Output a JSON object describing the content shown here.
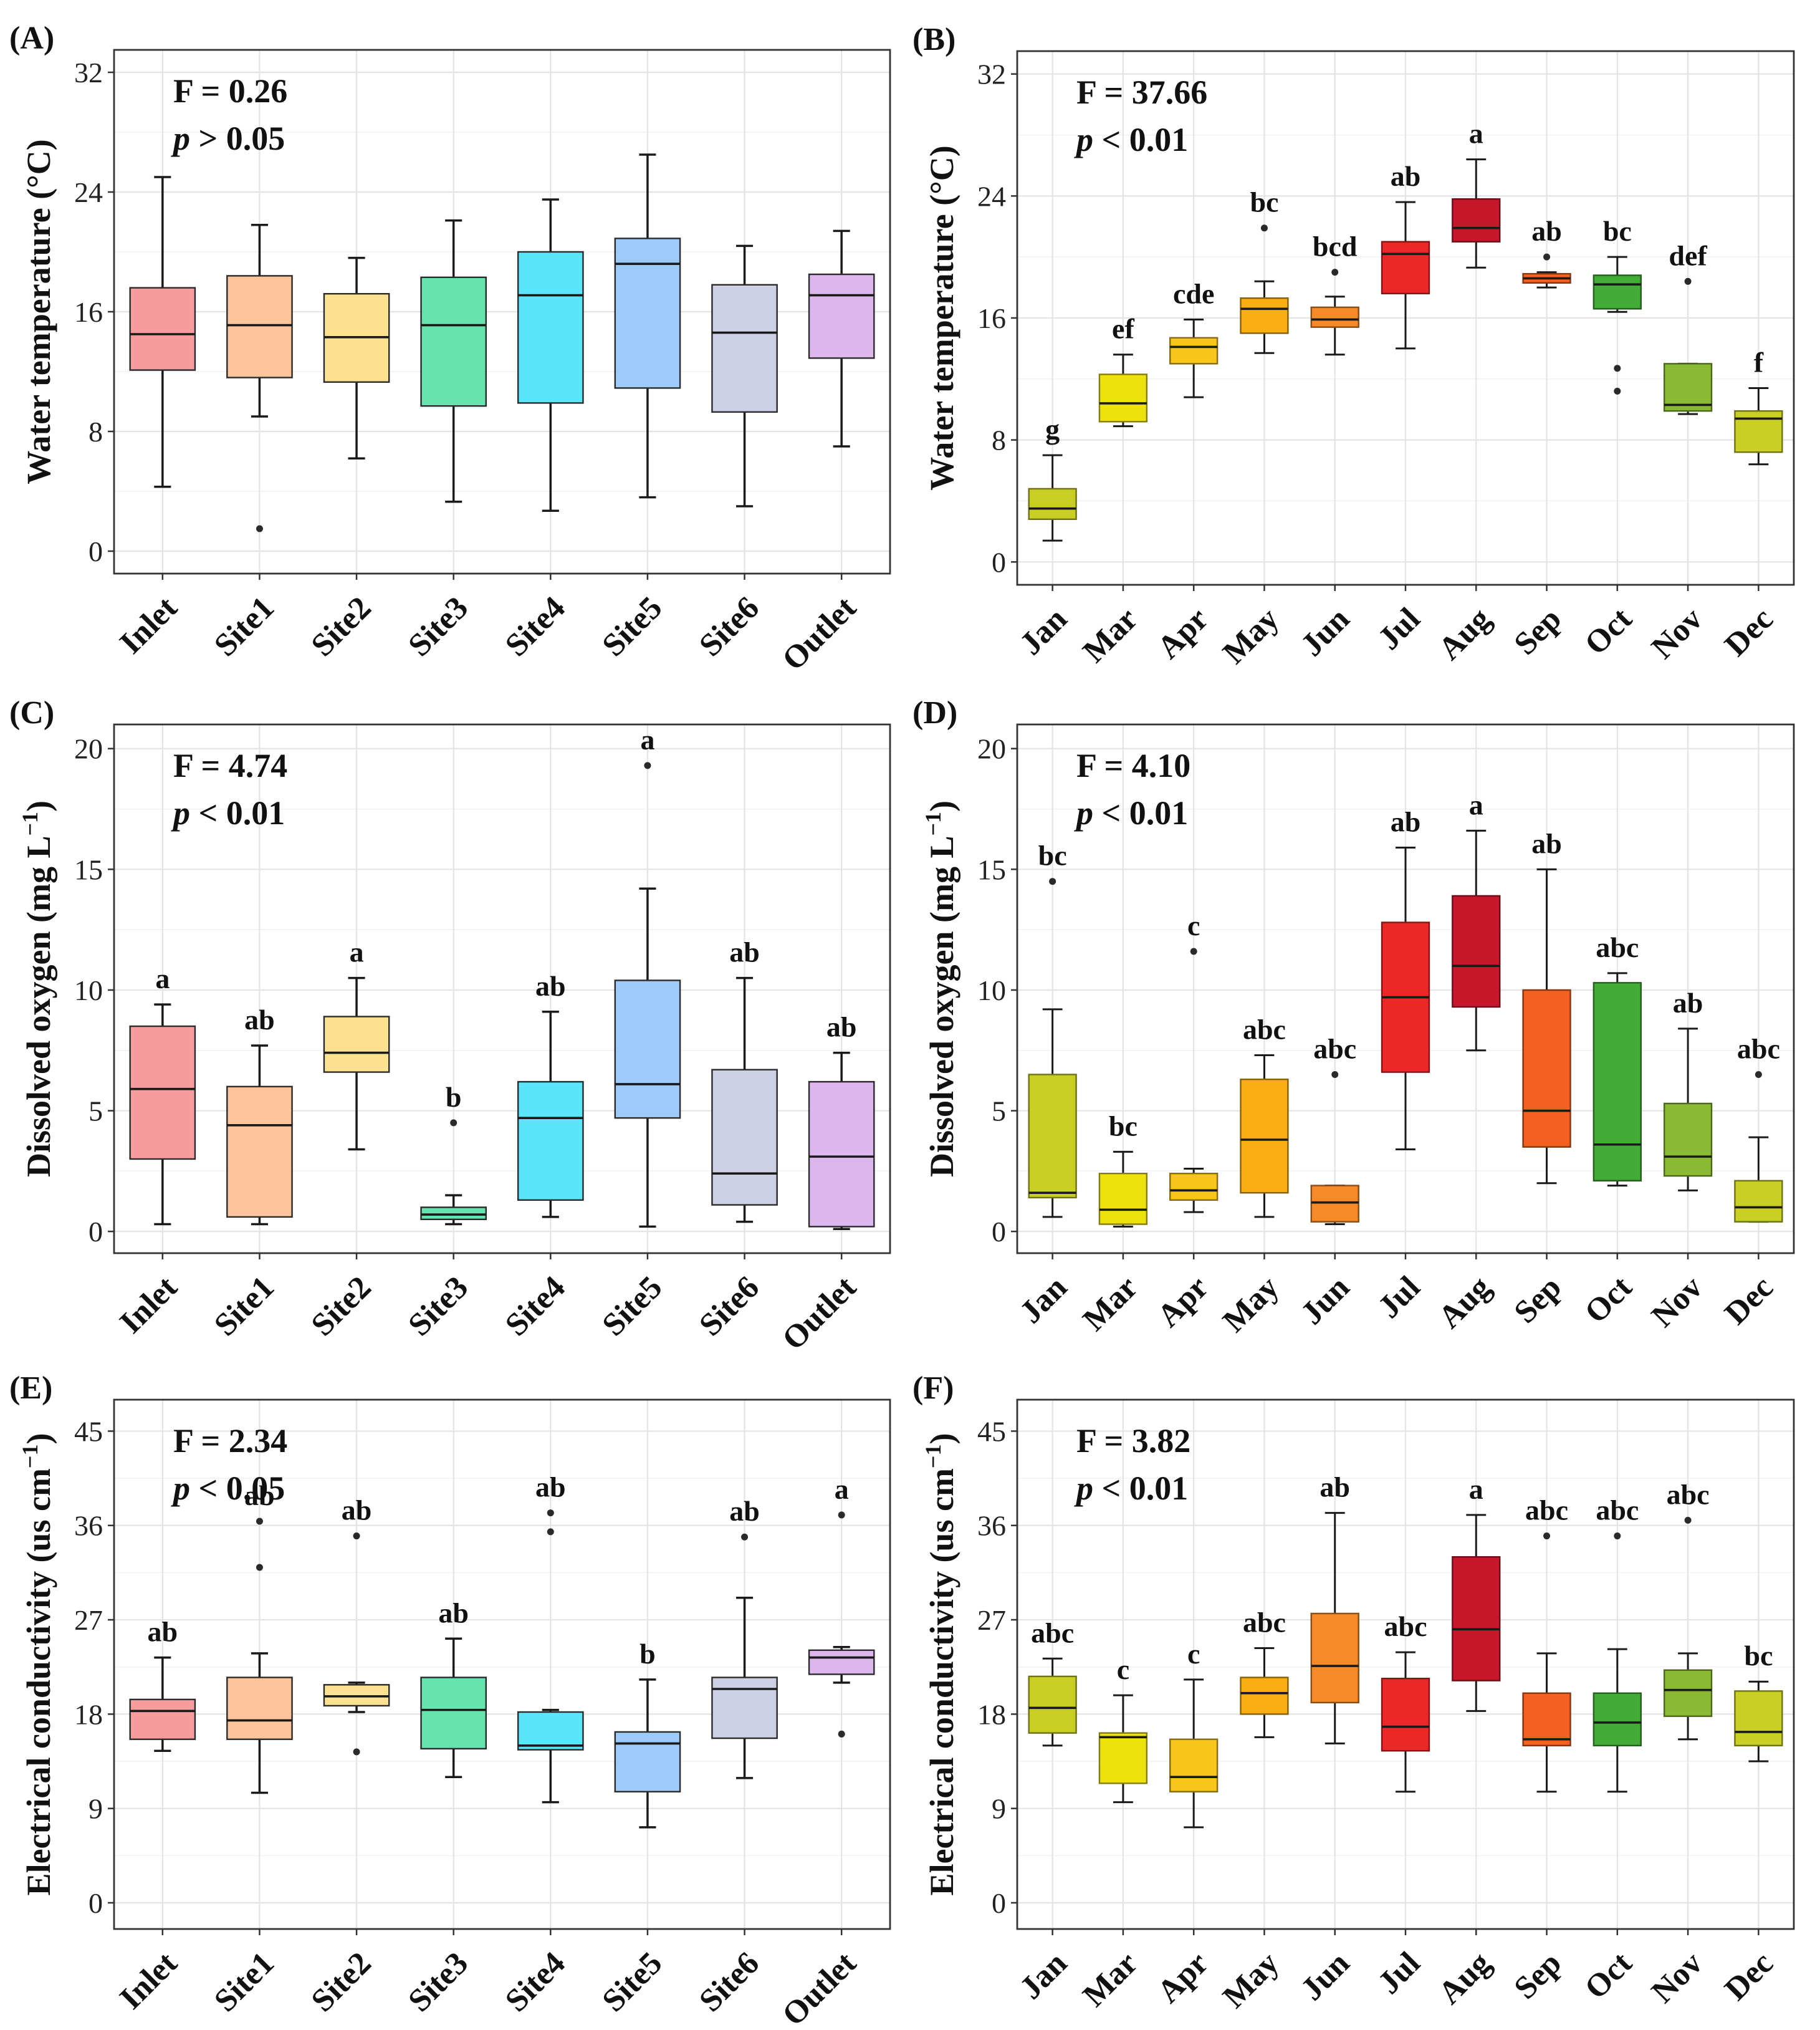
{
  "figure": {
    "site_colors": {
      "Inlet": "#F79C9C",
      "Site1": "#FCC49B",
      "Site2": "#FBE190",
      "Site3": "#66E3AE",
      "Site4": "#5BE5FA",
      "Site5": "#9DCBF9",
      "Site6": "#CED1E6",
      "Outlet": "#DDB6EE"
    },
    "month_colors": {
      "Jan": "#C8CF22",
      "Mar": "#EEE20E",
      "Apr": "#F7C51C",
      "May": "#F9AE13",
      "Jun": "#F78A28",
      "Jul": "#EC2727",
      "Aug": "#C8172A",
      "Sep": "#F4601F",
      "Oct": "#42AC36",
      "Nov": "#8AB933",
      "Dec": "#C9CF24"
    }
  },
  "chart_data": [
    {
      "type": "box",
      "panel_label": "(A)",
      "ylabel_main": "Water temperature (",
      "ylabel_unit": "°C",
      "ylabel_tail": ")",
      "ylim": [
        -1.5,
        33.5
      ],
      "yticks": [
        0,
        8,
        16,
        24,
        32
      ],
      "stat_F": "F = 0.26",
      "stat_p_symbol": "p",
      "stat_p_rest": " > 0.05",
      "categories": [
        "Inlet",
        "Site1",
        "Site2",
        "Site3",
        "Site4",
        "Site5",
        "Site6",
        "Outlet"
      ],
      "boxes": [
        {
          "min": 4.3,
          "q1": 12.1,
          "median": 14.5,
          "q3": 17.6,
          "max": 25.0,
          "outliers": [],
          "letter": ""
        },
        {
          "min": 9.0,
          "q1": 11.6,
          "median": 15.1,
          "q3": 18.4,
          "max": 21.8,
          "outliers": [
            1.5
          ],
          "letter": ""
        },
        {
          "min": 6.2,
          "q1": 11.3,
          "median": 14.3,
          "q3": 17.2,
          "max": 19.6,
          "outliers": [],
          "letter": ""
        },
        {
          "min": 3.3,
          "q1": 9.7,
          "median": 15.1,
          "q3": 18.3,
          "max": 22.1,
          "outliers": [],
          "letter": ""
        },
        {
          "min": 2.7,
          "q1": 9.9,
          "median": 17.1,
          "q3": 20.0,
          "max": 23.5,
          "outliers": [],
          "letter": ""
        },
        {
          "min": 3.6,
          "q1": 10.9,
          "median": 19.2,
          "q3": 20.9,
          "max": 26.5,
          "outliers": [],
          "letter": ""
        },
        {
          "min": 3.0,
          "q1": 9.3,
          "median": 14.6,
          "q3": 17.8,
          "max": 20.4,
          "outliers": [],
          "letter": ""
        },
        {
          "min": 7.0,
          "q1": 12.9,
          "median": 17.1,
          "q3": 18.5,
          "max": 21.4,
          "outliers": [],
          "letter": ""
        }
      ]
    },
    {
      "type": "box",
      "panel_label": "(B)",
      "ylabel_main": "Water temperature (",
      "ylabel_unit": "°C",
      "ylabel_tail": ")",
      "ylim": [
        -1.5,
        33.5
      ],
      "yticks": [
        0,
        8,
        16,
        24,
        32
      ],
      "stat_F": "F = 37.66",
      "stat_p_symbol": "p",
      "stat_p_rest": " < 0.01",
      "categories": [
        "Jan",
        "Mar",
        "Apr",
        "May",
        "Jun",
        "Jul",
        "Aug",
        "Sep",
        "Oct",
        "Nov",
        "Dec"
      ],
      "boxes": [
        {
          "min": 1.4,
          "q1": 2.8,
          "median": 3.5,
          "q3": 4.8,
          "max": 7.0,
          "outliers": [],
          "letter": "g"
        },
        {
          "min": 8.9,
          "q1": 9.2,
          "median": 10.4,
          "q3": 12.3,
          "max": 13.6,
          "outliers": [],
          "letter": "ef"
        },
        {
          "min": 10.8,
          "q1": 13.0,
          "median": 14.1,
          "q3": 14.7,
          "max": 15.9,
          "outliers": [],
          "letter": "cde"
        },
        {
          "min": 13.7,
          "q1": 15.0,
          "median": 16.6,
          "q3": 17.3,
          "max": 18.4,
          "outliers": [
            21.9
          ],
          "letter": "bc"
        },
        {
          "min": 13.6,
          "q1": 15.4,
          "median": 15.9,
          "q3": 16.7,
          "max": 17.4,
          "outliers": [
            19.0
          ],
          "letter": "bcd"
        },
        {
          "min": 14.0,
          "q1": 17.6,
          "median": 20.2,
          "q3": 21.0,
          "max": 23.6,
          "outliers": [],
          "letter": "ab"
        },
        {
          "min": 19.3,
          "q1": 21.0,
          "median": 21.9,
          "q3": 23.8,
          "max": 26.4,
          "outliers": [],
          "letter": "a"
        },
        {
          "min": 18.0,
          "q1": 18.3,
          "median": 18.6,
          "q3": 18.9,
          "max": 19.0,
          "outliers": [
            20.0
          ],
          "letter": "ab"
        },
        {
          "min": 16.4,
          "q1": 16.6,
          "median": 18.2,
          "q3": 18.8,
          "max": 20.0,
          "outliers": [
            11.2,
            12.7
          ],
          "letter": "bc"
        },
        {
          "min": 9.7,
          "q1": 9.9,
          "median": 10.3,
          "q3": 13.0,
          "max": 13.0,
          "outliers": [
            18.4
          ],
          "letter": "def"
        },
        {
          "min": 6.4,
          "q1": 7.2,
          "median": 9.4,
          "q3": 9.9,
          "max": 11.4,
          "outliers": [],
          "letter": "f"
        }
      ]
    },
    {
      "type": "box",
      "panel_label": "(C)",
      "ylabel_main": "Dissolved oxygen (mg L",
      "ylabel_unit": "−1",
      "ylabel_tail": ")",
      "ylim": [
        -0.9,
        21.0
      ],
      "yticks": [
        0,
        5,
        10,
        15,
        20
      ],
      "stat_F": "F = 4.74",
      "stat_p_symbol": "p",
      "stat_p_rest": " < 0.01",
      "categories": [
        "Inlet",
        "Site1",
        "Site2",
        "Site3",
        "Site4",
        "Site5",
        "Site6",
        "Outlet"
      ],
      "boxes": [
        {
          "min": 0.3,
          "q1": 3.0,
          "median": 5.9,
          "q3": 8.5,
          "max": 9.4,
          "outliers": [],
          "letter": "a"
        },
        {
          "min": 0.3,
          "q1": 0.6,
          "median": 4.4,
          "q3": 6.0,
          "max": 7.7,
          "outliers": [],
          "letter": "ab"
        },
        {
          "min": 3.4,
          "q1": 6.6,
          "median": 7.4,
          "q3": 8.9,
          "max": 10.5,
          "outliers": [],
          "letter": "a"
        },
        {
          "min": 0.3,
          "q1": 0.5,
          "median": 0.7,
          "q3": 1.0,
          "max": 1.5,
          "outliers": [
            4.5
          ],
          "letter": "b"
        },
        {
          "min": 0.6,
          "q1": 1.3,
          "median": 4.7,
          "q3": 6.2,
          "max": 9.1,
          "outliers": [],
          "letter": "ab"
        },
        {
          "min": 0.2,
          "q1": 4.7,
          "median": 6.1,
          "q3": 10.4,
          "max": 14.2,
          "outliers": [
            19.3
          ],
          "letter": "a"
        },
        {
          "min": 0.4,
          "q1": 1.1,
          "median": 2.4,
          "q3": 6.7,
          "max": 10.5,
          "outliers": [],
          "letter": "ab"
        },
        {
          "min": 0.1,
          "q1": 0.2,
          "median": 3.1,
          "q3": 6.2,
          "max": 7.4,
          "outliers": [],
          "letter": "ab"
        }
      ]
    },
    {
      "type": "box",
      "panel_label": "(D)",
      "ylabel_main": "Dissolved oxygen (mg L",
      "ylabel_unit": "−1",
      "ylabel_tail": ")",
      "ylim": [
        -0.9,
        21.0
      ],
      "yticks": [
        0,
        5,
        10,
        15,
        20
      ],
      "stat_F": "F = 4.10",
      "stat_p_symbol": "p",
      "stat_p_rest": " < 0.01",
      "categories": [
        "Jan",
        "Mar",
        "Apr",
        "May",
        "Jun",
        "Jul",
        "Aug",
        "Sep",
        "Oct",
        "Nov",
        "Dec"
      ],
      "boxes": [
        {
          "min": 0.6,
          "q1": 1.4,
          "median": 1.6,
          "q3": 6.5,
          "max": 9.2,
          "outliers": [
            14.5
          ],
          "letter": "bc"
        },
        {
          "min": 0.2,
          "q1": 0.3,
          "median": 0.9,
          "q3": 2.4,
          "max": 3.3,
          "outliers": [],
          "letter": "bc"
        },
        {
          "min": 0.8,
          "q1": 1.3,
          "median": 1.7,
          "q3": 2.4,
          "max": 2.6,
          "outliers": [
            11.6
          ],
          "letter": "c"
        },
        {
          "min": 0.6,
          "q1": 1.6,
          "median": 3.8,
          "q3": 6.3,
          "max": 7.3,
          "outliers": [],
          "letter": "abc"
        },
        {
          "min": 0.3,
          "q1": 0.4,
          "median": 1.2,
          "q3": 1.9,
          "max": 1.9,
          "outliers": [
            6.5
          ],
          "letter": "abc"
        },
        {
          "min": 3.4,
          "q1": 6.6,
          "median": 9.7,
          "q3": 12.8,
          "max": 15.9,
          "outliers": [],
          "letter": "ab"
        },
        {
          "min": 7.5,
          "q1": 9.3,
          "median": 11.0,
          "q3": 13.9,
          "max": 16.6,
          "outliers": [],
          "letter": "a"
        },
        {
          "min": 2.0,
          "q1": 3.5,
          "median": 5.0,
          "q3": 10.0,
          "max": 15.0,
          "outliers": [],
          "letter": "ab"
        },
        {
          "min": 1.9,
          "q1": 2.1,
          "median": 3.6,
          "q3": 10.3,
          "max": 10.7,
          "outliers": [],
          "letter": "abc"
        },
        {
          "min": 1.7,
          "q1": 2.3,
          "median": 3.1,
          "q3": 5.3,
          "max": 8.4,
          "outliers": [],
          "letter": "ab"
        },
        {
          "min": 0.4,
          "q1": 0.4,
          "median": 1.0,
          "q3": 2.1,
          "max": 3.9,
          "outliers": [
            6.5
          ],
          "letter": "abc"
        }
      ]
    },
    {
      "type": "box",
      "panel_label": "(E)",
      "ylabel_main": "Electrical conductivity (us cm",
      "ylabel_unit": "−1",
      "ylabel_tail": ")",
      "ylim": [
        -2.5,
        48.0
      ],
      "yticks": [
        0,
        9,
        18,
        27,
        36,
        45
      ],
      "stat_F": "F = 2.34",
      "stat_p_symbol": "p",
      "stat_p_rest": " < 0.05",
      "categories": [
        "Inlet",
        "Site1",
        "Site2",
        "Site3",
        "Site4",
        "Site5",
        "Site6",
        "Outlet"
      ],
      "boxes": [
        {
          "min": 14.5,
          "q1": 15.6,
          "median": 18.3,
          "q3": 19.4,
          "max": 23.4,
          "outliers": [],
          "letter": "ab"
        },
        {
          "min": 10.5,
          "q1": 15.6,
          "median": 17.4,
          "q3": 21.5,
          "max": 23.8,
          "outliers": [
            32.0,
            36.4
          ],
          "letter": "ab"
        },
        {
          "min": 18.2,
          "q1": 18.8,
          "median": 19.7,
          "q3": 20.8,
          "max": 21.0,
          "outliers": [
            14.4,
            35.0
          ],
          "letter": "ab"
        },
        {
          "min": 12.0,
          "q1": 14.7,
          "median": 18.4,
          "q3": 21.5,
          "max": 25.2,
          "outliers": [],
          "letter": "ab"
        },
        {
          "min": 9.6,
          "q1": 14.6,
          "median": 15.0,
          "q3": 18.2,
          "max": 18.4,
          "outliers": [
            35.4,
            37.2
          ],
          "letter": "ab"
        },
        {
          "min": 7.2,
          "q1": 10.6,
          "median": 15.2,
          "q3": 16.3,
          "max": 21.3,
          "outliers": [],
          "letter": "b"
        },
        {
          "min": 11.9,
          "q1": 15.7,
          "median": 20.4,
          "q3": 21.5,
          "max": 29.1,
          "outliers": [
            34.9
          ],
          "letter": "ab"
        },
        {
          "min": 21.0,
          "q1": 21.8,
          "median": 23.4,
          "q3": 24.1,
          "max": 24.4,
          "outliers": [
            16.1,
            37.0
          ],
          "letter": "a"
        }
      ]
    },
    {
      "type": "box",
      "panel_label": "(F)",
      "ylabel_main": "Electrical conductivity (us cm",
      "ylabel_unit": "−1",
      "ylabel_tail": ")",
      "ylim": [
        -2.5,
        48.0
      ],
      "yticks": [
        0,
        9,
        18,
        27,
        36,
        45
      ],
      "stat_F": "F = 3.82",
      "stat_p_symbol": "p",
      "stat_p_rest": " < 0.01",
      "categories": [
        "Jan",
        "Mar",
        "Apr",
        "May",
        "Jun",
        "Jul",
        "Aug",
        "Sep",
        "Oct",
        "Nov",
        "Dec"
      ],
      "boxes": [
        {
          "min": 15.0,
          "q1": 16.2,
          "median": 18.6,
          "q3": 21.6,
          "max": 23.3,
          "outliers": [],
          "letter": "abc"
        },
        {
          "min": 9.6,
          "q1": 11.4,
          "median": 15.8,
          "q3": 16.2,
          "max": 19.8,
          "outliers": [],
          "letter": "c"
        },
        {
          "min": 7.2,
          "q1": 10.6,
          "median": 12.0,
          "q3": 15.6,
          "max": 21.3,
          "outliers": [],
          "letter": "c"
        },
        {
          "min": 15.8,
          "q1": 18.0,
          "median": 20.0,
          "q3": 21.5,
          "max": 24.3,
          "outliers": [],
          "letter": "abc"
        },
        {
          "min": 15.2,
          "q1": 19.1,
          "median": 22.6,
          "q3": 27.6,
          "max": 37.2,
          "outliers": [],
          "letter": "ab"
        },
        {
          "min": 10.6,
          "q1": 14.5,
          "median": 16.8,
          "q3": 21.4,
          "max": 23.9,
          "outliers": [],
          "letter": "abc"
        },
        {
          "min": 18.3,
          "q1": 21.2,
          "median": 26.1,
          "q3": 33.0,
          "max": 37.0,
          "outliers": [],
          "letter": "a"
        },
        {
          "min": 10.6,
          "q1": 15.0,
          "median": 15.6,
          "q3": 20.0,
          "max": 23.8,
          "outliers": [
            35.0
          ],
          "letter": "abc"
        },
        {
          "min": 10.6,
          "q1": 15.0,
          "median": 17.2,
          "q3": 20.0,
          "max": 24.2,
          "outliers": [
            35.0
          ],
          "letter": "abc"
        },
        {
          "min": 15.6,
          "q1": 17.8,
          "median": 20.3,
          "q3": 22.2,
          "max": 23.8,
          "outliers": [
            36.5
          ],
          "letter": "abc"
        },
        {
          "min": 13.5,
          "q1": 15.0,
          "median": 16.3,
          "q3": 20.2,
          "max": 21.1,
          "outliers": [],
          "letter": "bc"
        }
      ]
    }
  ]
}
